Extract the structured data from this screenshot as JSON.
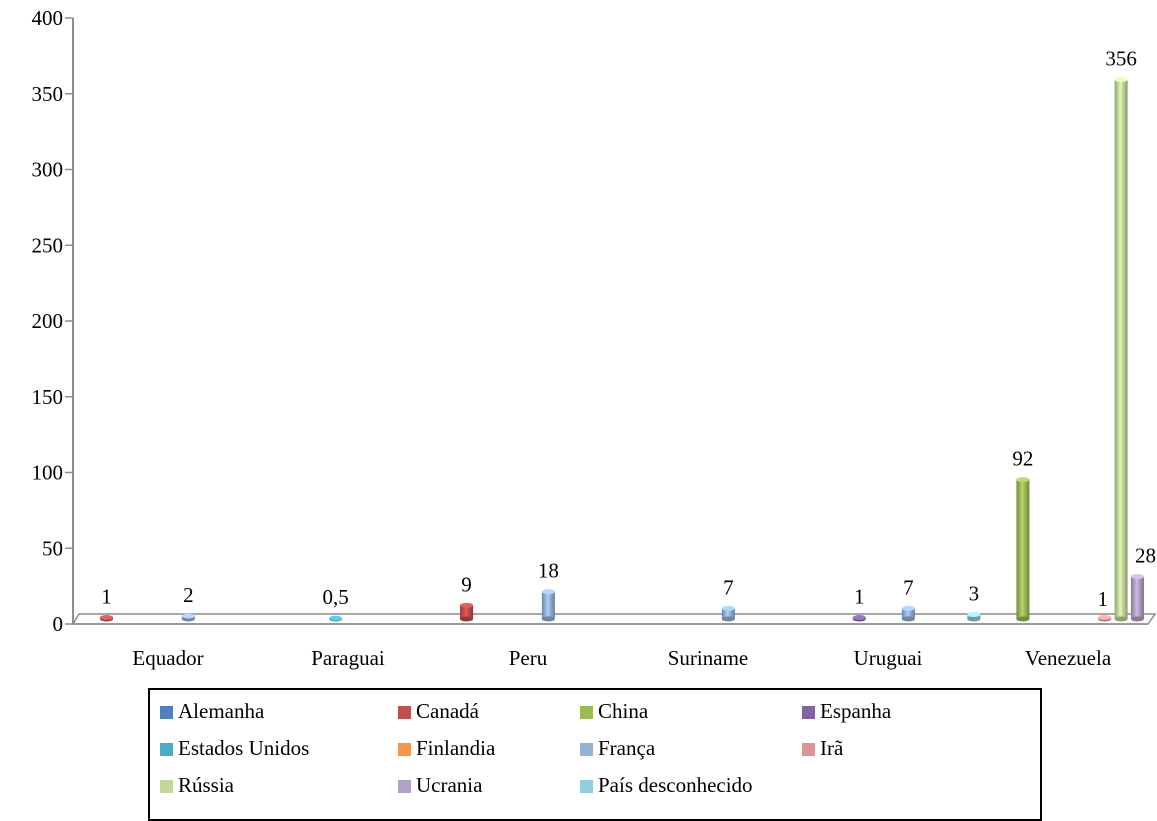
{
  "chart_data": {
    "type": "bar",
    "title": "",
    "xlabel": "",
    "ylabel": "",
    "ylim": [
      0,
      400
    ],
    "yticks": [
      "0",
      "50",
      "100",
      "150",
      "200",
      "250",
      "300",
      "350",
      "400"
    ],
    "categories": [
      "Equador",
      "Paraguai",
      "Peru",
      "Suriname",
      "Uruguai",
      "Venezuela"
    ],
    "series": [
      {
        "name": "Alemanha",
        "color": "#4F81BD",
        "values": [
          null,
          null,
          null,
          null,
          null,
          null
        ]
      },
      {
        "name": "Canadá",
        "color": "#C0504D",
        "values": [
          1,
          null,
          9,
          null,
          null,
          null
        ]
      },
      {
        "name": "China",
        "color": "#9BBB59",
        "values": [
          null,
          null,
          null,
          null,
          null,
          92
        ]
      },
      {
        "name": "Espanha",
        "color": "#8064A2",
        "values": [
          null,
          null,
          null,
          null,
          1,
          null
        ]
      },
      {
        "name": "Estados Unidos",
        "color": "#4BACC6",
        "values": [
          null,
          0.5,
          null,
          null,
          null,
          null
        ]
      },
      {
        "name": "Finlandia",
        "color": "#F79646",
        "values": [
          null,
          null,
          null,
          null,
          null,
          null
        ]
      },
      {
        "name": "França",
        "color": "#95B3D7",
        "values": [
          2,
          null,
          18,
          7,
          7,
          null
        ]
      },
      {
        "name": "Irã",
        "color": "#D99694",
        "values": [
          null,
          null,
          null,
          null,
          null,
          1
        ]
      },
      {
        "name": "Rússia",
        "color": "#C3D69B",
        "values": [
          null,
          null,
          null,
          null,
          null,
          356
        ]
      },
      {
        "name": "Ucrania",
        "color": "#B2A2C7",
        "values": [
          null,
          null,
          null,
          null,
          null,
          28
        ]
      },
      {
        "name": "País desconhecido",
        "color": "#93CDDD",
        "values": [
          null,
          null,
          null,
          null,
          3,
          null
        ]
      }
    ],
    "data_labels": {
      "Equador": [
        "1",
        null,
        "2"
      ],
      "Paraguai": [
        "0,5"
      ],
      "Peru": [
        "9",
        "18"
      ],
      "Suriname": [
        "7"
      ],
      "Uruguai": [
        "1",
        "7",
        "3"
      ],
      "Venezuela": [
        "92",
        "1",
        "356",
        "28"
      ]
    },
    "legend_position": "bottom",
    "grid": false
  }
}
